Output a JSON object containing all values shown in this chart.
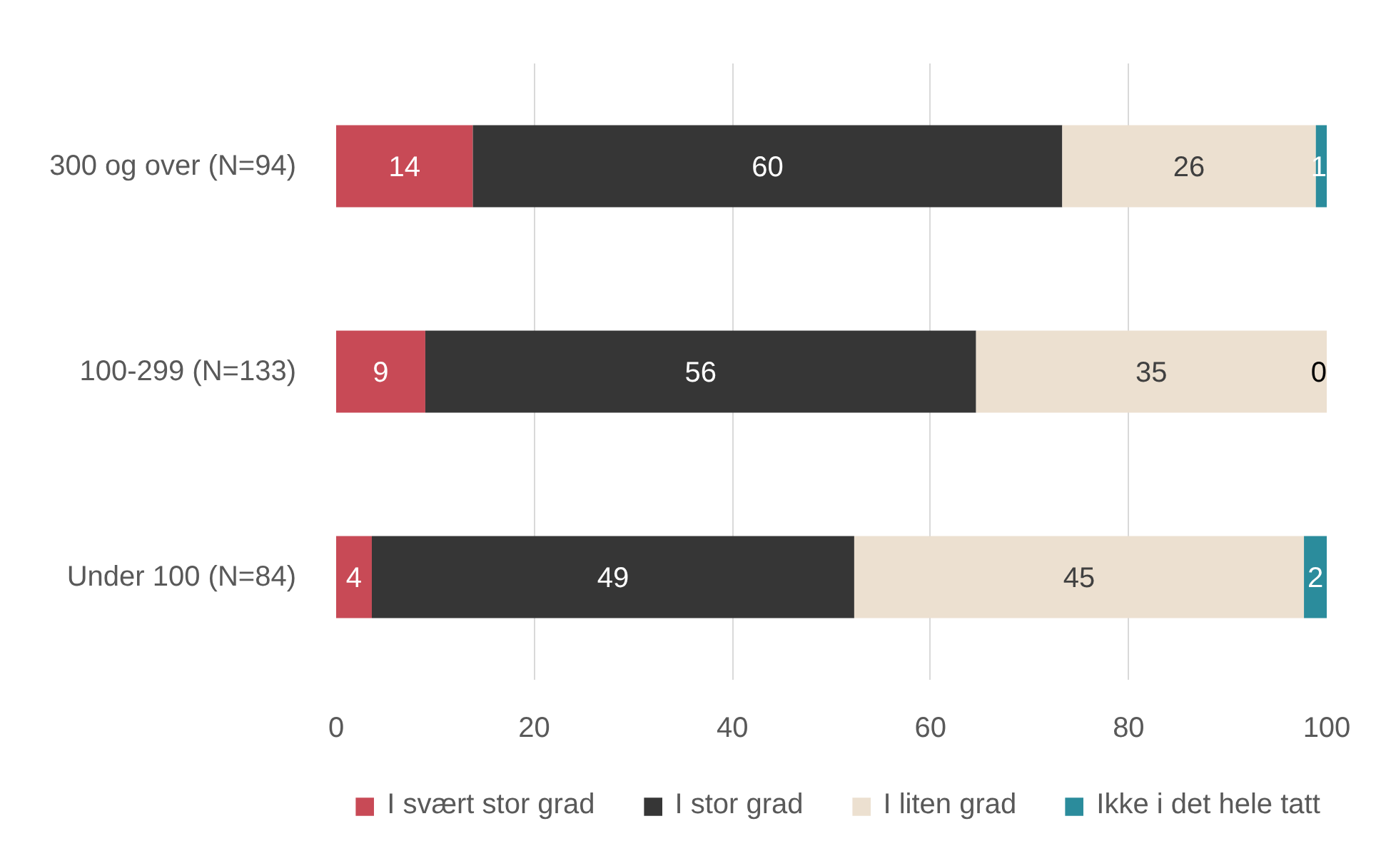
{
  "chart_data": {
    "type": "bar",
    "orientation": "horizontal",
    "stacked": true,
    "categories": [
      "300 og over (N=94)",
      "100-299 (N=133)",
      "Under 100 (N=84)"
    ],
    "series": [
      {
        "name": "I svært stor grad",
        "color": "#c84a56",
        "values": [
          13.8,
          9.0,
          3.6
        ],
        "value_labels": [
          "14",
          "9",
          "4"
        ]
      },
      {
        "name": "I stor grad",
        "color": "#363636",
        "values": [
          59.5,
          55.6,
          48.7
        ],
        "value_labels": [
          "60",
          "56",
          "49"
        ]
      },
      {
        "name": "I liten grad",
        "color": "#ece0d0",
        "values": [
          25.6,
          35.4,
          45.4
        ],
        "value_labels": [
          "26",
          "35",
          "45"
        ]
      },
      {
        "name": "Ikke i det hele tatt",
        "color": "#2b8c9c",
        "values": [
          1.1,
          0,
          2.3
        ],
        "value_labels": [
          "1",
          "0",
          "2"
        ]
      }
    ],
    "xlim": [
      0,
      100
    ],
    "xticks": [
      0,
      20,
      40,
      60,
      80,
      100
    ],
    "grid": "x",
    "legend": "bottom"
  }
}
